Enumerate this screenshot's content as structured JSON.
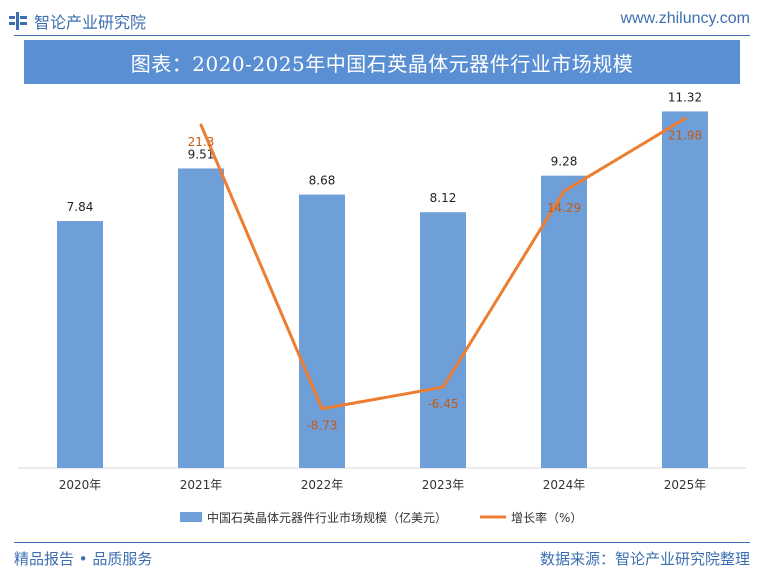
{
  "header": {
    "brand": "智论产业研究院",
    "website": "www.zhiluncy.com"
  },
  "title": "图表：2020-2025年中国石英晶体元器件行业市场规模",
  "footer": {
    "left": "精品报告 • 品质服务",
    "right": "数据来源：智论产业研究院整理"
  },
  "colors": {
    "brand": "#3d6fb0",
    "bar": "#6f9fd8",
    "line": "#ed7d31",
    "title_bg": "#5b8fd3"
  },
  "chart_data": {
    "type": "bar",
    "categories": [
      "2020年",
      "2021年",
      "2022年",
      "2023年",
      "2024年",
      "2025年"
    ],
    "series": [
      {
        "name": "中国石英晶体元器件行业市场规模（亿美元）",
        "kind": "bar",
        "values": [
          7.84,
          9.51,
          8.68,
          8.12,
          9.28,
          11.32
        ],
        "labels": [
          "7.84",
          "9.51",
          "8.68",
          "8.12",
          "9.28",
          "11.32"
        ]
      },
      {
        "name": "增长率（%）",
        "kind": "line",
        "values": [
          null,
          21.3,
          -8.73,
          -6.45,
          14.29,
          21.98
        ],
        "labels": [
          "",
          "21.3",
          "-8.73",
          "-6.45",
          "14.29",
          "21.98"
        ]
      }
    ],
    "bar_ylim": [
      0,
      12
    ],
    "line_ylim": [
      -15,
      25
    ],
    "legend_position": "bottom"
  }
}
